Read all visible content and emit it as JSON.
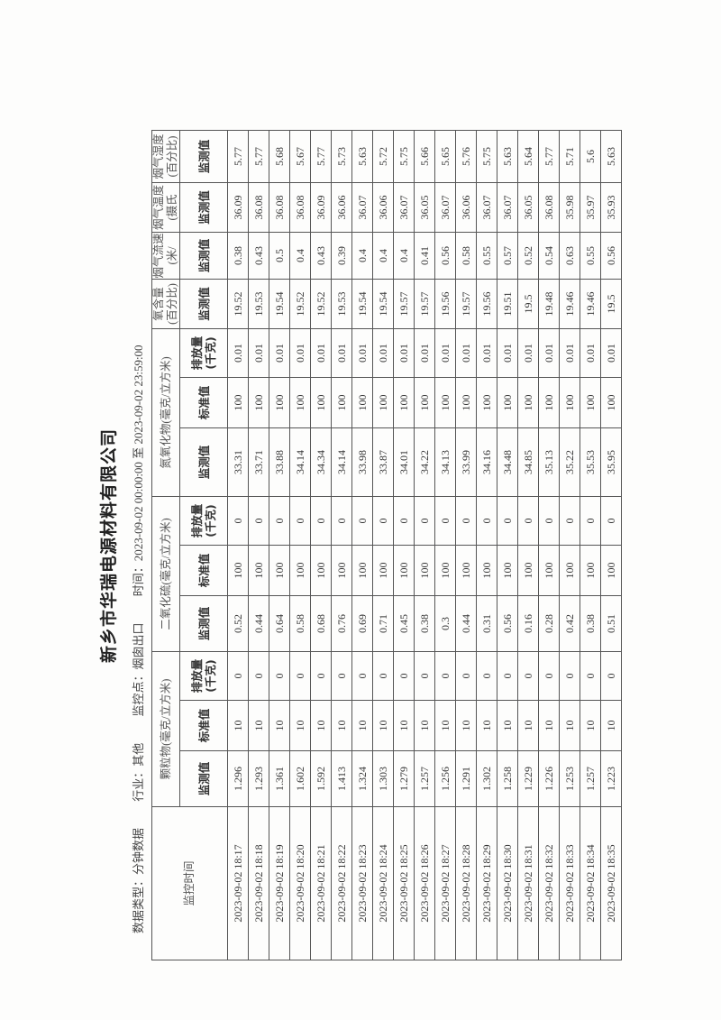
{
  "title": "新乡市华瑞电源材料有限公司",
  "info": {
    "data_type": "数据类型：分钟数据",
    "industry": "行业：其他",
    "monitor_point": "监控点：烟囱出口",
    "time_range": "时间：2023-09-02 00:00:00 至 2023-09-02 23:59:00"
  },
  "headers": {
    "time": "监控时间",
    "pm": "颗粒物(毫克/立方米)",
    "so2": "二氧化硫(毫克/立方米)",
    "nox": "氮氧化物(毫克/立方米)",
    "o2": "氧含量(百分比)",
    "flow": "烟气流速(米/",
    "temp": "烟气温度(摄氏",
    "humidity": "烟气湿度(百分比)",
    "measured": "监测值",
    "standard": "标准值",
    "emission": "排放量(千克)"
  },
  "rows": [
    [
      "2023-09-02 18:17",
      "1.296",
      "10",
      "0",
      "0.52",
      "100",
      "0",
      "33.31",
      "100",
      "0.01",
      "19.52",
      "0.38",
      "36.09",
      "5.77"
    ],
    [
      "2023-09-02 18:18",
      "1.293",
      "10",
      "0",
      "0.44",
      "100",
      "0",
      "33.71",
      "100",
      "0.01",
      "19.53",
      "0.43",
      "36.08",
      "5.77"
    ],
    [
      "2023-09-02 18:19",
      "1.361",
      "10",
      "0",
      "0.64",
      "100",
      "0",
      "33.88",
      "100",
      "0.01",
      "19.54",
      "0.5",
      "36.08",
      "5.68"
    ],
    [
      "2023-09-02 18:20",
      "1.602",
      "10",
      "0",
      "0.58",
      "100",
      "0",
      "34.14",
      "100",
      "0.01",
      "19.52",
      "0.4",
      "36.08",
      "5.67"
    ],
    [
      "2023-09-02 18:21",
      "1.592",
      "10",
      "0",
      "0.68",
      "100",
      "0",
      "34.34",
      "100",
      "0.01",
      "19.52",
      "0.43",
      "36.09",
      "5.77"
    ],
    [
      "2023-09-02 18:22",
      "1.413",
      "10",
      "0",
      "0.76",
      "100",
      "0",
      "34.14",
      "100",
      "0.01",
      "19.53",
      "0.39",
      "36.06",
      "5.73"
    ],
    [
      "2023-09-02 18:23",
      "1.324",
      "10",
      "0",
      "0.69",
      "100",
      "0",
      "33.98",
      "100",
      "0.01",
      "19.54",
      "0.4",
      "36.07",
      "5.63"
    ],
    [
      "2023-09-02 18:24",
      "1.303",
      "10",
      "0",
      "0.71",
      "100",
      "0",
      "33.87",
      "100",
      "0.01",
      "19.54",
      "0.4",
      "36.06",
      "5.72"
    ],
    [
      "2023-09-02 18:25",
      "1.279",
      "10",
      "0",
      "0.45",
      "100",
      "0",
      "34.01",
      "100",
      "0.01",
      "19.57",
      "0.4",
      "36.07",
      "5.75"
    ],
    [
      "2023-09-02 18:26",
      "1.257",
      "10",
      "0",
      "0.38",
      "100",
      "0",
      "34.22",
      "100",
      "0.01",
      "19.57",
      "0.41",
      "36.05",
      "5.66"
    ],
    [
      "2023-09-02 18:27",
      "1.256",
      "10",
      "0",
      "0.3",
      "100",
      "0",
      "34.13",
      "100",
      "0.01",
      "19.56",
      "0.56",
      "36.07",
      "5.65"
    ],
    [
      "2023-09-02 18:28",
      "1.291",
      "10",
      "0",
      "0.44",
      "100",
      "0",
      "33.99",
      "100",
      "0.01",
      "19.57",
      "0.58",
      "36.06",
      "5.76"
    ],
    [
      "2023-09-02 18:29",
      "1.302",
      "10",
      "0",
      "0.31",
      "100",
      "0",
      "34.16",
      "100",
      "0.01",
      "19.56",
      "0.55",
      "36.07",
      "5.75"
    ],
    [
      "2023-09-02 18:30",
      "1.258",
      "10",
      "0",
      "0.56",
      "100",
      "0",
      "34.48",
      "100",
      "0.01",
      "19.51",
      "0.57",
      "36.07",
      "5.63"
    ],
    [
      "2023-09-02 18:31",
      "1.229",
      "10",
      "0",
      "0.16",
      "100",
      "0",
      "34.85",
      "100",
      "0.01",
      "19.5",
      "0.52",
      "36.05",
      "5.64"
    ],
    [
      "2023-09-02 18:32",
      "1.226",
      "10",
      "0",
      "0.28",
      "100",
      "0",
      "35.13",
      "100",
      "0.01",
      "19.48",
      "0.54",
      "36.08",
      "5.77"
    ],
    [
      "2023-09-02 18:33",
      "1.253",
      "10",
      "0",
      "0.42",
      "100",
      "0",
      "35.22",
      "100",
      "0.01",
      "19.46",
      "0.63",
      "35.98",
      "5.71"
    ],
    [
      "2023-09-02 18:34",
      "1.257",
      "10",
      "0",
      "0.38",
      "100",
      "0",
      "35.53",
      "100",
      "0.01",
      "19.46",
      "0.55",
      "35.97",
      "5.6"
    ],
    [
      "2023-09-02 18:35",
      "1.223",
      "10",
      "0",
      "0.51",
      "100",
      "0",
      "35.95",
      "100",
      "0.01",
      "19.5",
      "0.56",
      "35.93",
      "5.63"
    ]
  ]
}
